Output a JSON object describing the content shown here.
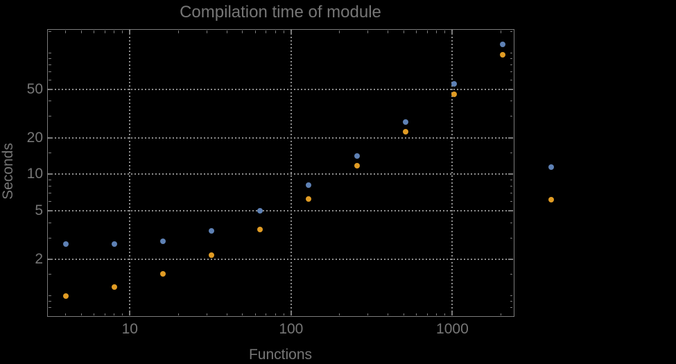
{
  "page": {
    "background": "#000000"
  },
  "chart_data": {
    "type": "scatter",
    "title": "Compilation time of module",
    "xlabel": "Functions",
    "ylabel": "Seconds",
    "x_scale": "log",
    "y_scale": "log",
    "xlim": [
      3.1,
      2380
    ],
    "ylim": [
      0.69,
      154.6
    ],
    "grid": "dotted gridlines at labeled major ticks",
    "legend": "none",
    "x": [
      4,
      8,
      16,
      32,
      64,
      128,
      256,
      512,
      1024,
      2048,
      4096
    ],
    "series": [
      {
        "name": "blue",
        "color": "#5E81B5",
        "values": [
          2.68,
          2.68,
          2.83,
          3.44,
          5.04,
          8.18,
          14.2,
          27.0,
          55.6,
          117,
          11.5
        ]
      },
      {
        "name": "orange",
        "color": "#E19C24",
        "values": [
          1.0,
          1.18,
          1.51,
          2.15,
          3.51,
          6.29,
          11.8,
          22.5,
          45.6,
          96.4,
          6.21
        ]
      }
    ],
    "x_major_ticks": [
      {
        "value": 10,
        "label": "10"
      },
      {
        "value": 100,
        "label": "100"
      },
      {
        "value": 1000,
        "label": "1000"
      }
    ],
    "x_minor_ticks": [
      4,
      5,
      6,
      7,
      8,
      9,
      20,
      30,
      40,
      50,
      60,
      70,
      80,
      90,
      200,
      300,
      400,
      500,
      600,
      700,
      800,
      900,
      2000
    ],
    "y_major_ticks": [
      {
        "value": 2,
        "label": "2"
      },
      {
        "value": 5,
        "label": "5"
      },
      {
        "value": 10,
        "label": "10"
      },
      {
        "value": 20,
        "label": "20"
      },
      {
        "value": 50,
        "label": "50"
      }
    ],
    "y_minor_ticks": [
      0.8,
      0.9,
      1,
      1.5,
      3,
      4,
      6,
      7,
      8,
      9,
      15,
      30,
      40,
      60,
      70,
      80,
      90,
      100,
      150
    ],
    "colors": {
      "background": "#000000",
      "frame": "#7c7c7c",
      "grid": "#8c8c8c",
      "text": "#767676"
    }
  }
}
